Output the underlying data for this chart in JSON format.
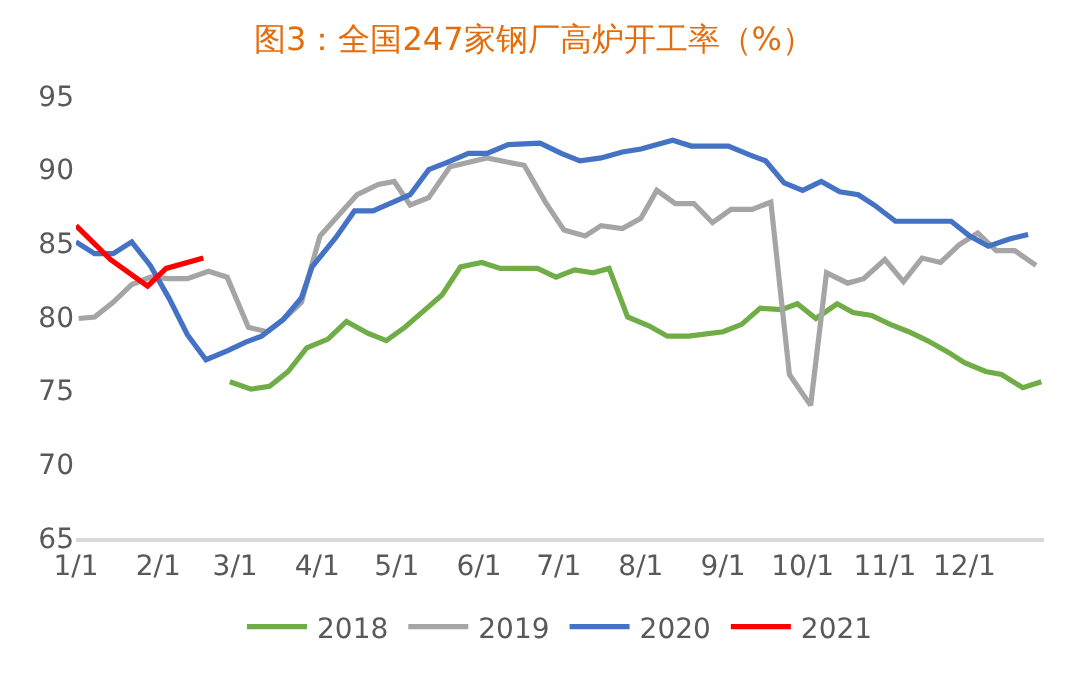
{
  "chart_data": {
    "type": "line",
    "title": "图3：全国247家钢厂高炉开工率（%）",
    "xlim": [
      "--01-01",
      "--12-31"
    ],
    "xticks": [
      {
        "value": "--01-01",
        "label": "1/1"
      },
      {
        "value": "--02-01",
        "label": "2/1"
      },
      {
        "value": "--03-01",
        "label": "3/1"
      },
      {
        "value": "--04-01",
        "label": "4/1"
      },
      {
        "value": "--05-01",
        "label": "5/1"
      },
      {
        "value": "--06-01",
        "label": "6/1"
      },
      {
        "value": "--07-01",
        "label": "7/1"
      },
      {
        "value": "--08-01",
        "label": "8/1"
      },
      {
        "value": "--09-01",
        "label": "9/1"
      },
      {
        "value": "--10-01",
        "label": "10/1"
      },
      {
        "value": "--11-01",
        "label": "11/1"
      },
      {
        "value": "--12-01",
        "label": "12/1"
      }
    ],
    "ylim": [
      65,
      95
    ],
    "yticks": [
      65,
      70,
      75,
      80,
      85,
      90,
      95
    ],
    "grid": false,
    "legend": "bottom",
    "marker": "none",
    "line_style": "solid",
    "series": [
      {
        "name": "2018",
        "color": "#70ad47",
        "x": [
          "--02-28",
          "--03-07",
          "--03-14",
          "--03-21",
          "--03-28",
          "--04-05",
          "--04-12",
          "--04-20",
          "--04-27",
          "--05-04",
          "--05-11",
          "--05-18",
          "--05-25",
          "--06-02",
          "--06-09",
          "--06-23",
          "--06-30",
          "--07-07",
          "--07-14",
          "--07-20",
          "--07-27",
          "--08-04",
          "--08-11",
          "--08-19",
          "--09-01",
          "--09-08",
          "--09-15",
          "--09-23",
          "--09-29",
          "--10-06",
          "--10-14",
          "--10-20",
          "--10-27",
          "--11-03",
          "--11-10",
          "--11-17",
          "--11-25",
          "--12-01",
          "--12-09",
          "--12-15",
          "--12-23",
          "--12-30"
        ],
        "values": [
          75.6,
          75.1,
          75.3,
          76.3,
          77.9,
          78.5,
          79.7,
          78.9,
          78.4,
          79.3,
          80.4,
          81.5,
          83.4,
          83.7,
          83.3,
          83.3,
          82.7,
          83.2,
          83.0,
          83.3,
          80.0,
          79.4,
          78.7,
          78.7,
          79.0,
          79.5,
          80.6,
          80.5,
          80.9,
          79.9,
          80.9,
          80.3,
          80.1,
          79.5,
          79.0,
          78.4,
          77.6,
          76.9,
          76.3,
          76.1,
          75.2,
          75.6
        ]
      },
      {
        "name": "2019",
        "color": "#a5a5a5",
        "x": [
          "--01-02",
          "--01-08",
          "--01-15",
          "--01-22",
          "--01-29",
          "--02-05",
          "--02-12",
          "--02-20",
          "--02-27",
          "--03-06",
          "--03-13",
          "--03-19",
          "--03-26",
          "--04-02",
          "--04-09",
          "--04-16",
          "--04-24",
          "--04-30",
          "--05-06",
          "--05-13",
          "--05-21",
          "--06-04",
          "--06-12",
          "--06-18",
          "--06-26",
          "--07-03",
          "--07-11",
          "--07-17",
          "--07-25",
          "--08-01",
          "--08-07",
          "--08-14",
          "--08-21",
          "--08-28",
          "--09-04",
          "--09-12",
          "--09-19",
          "--09-26",
          "--10-04",
          "--10-10",
          "--10-18",
          "--10-24",
          "--11-01",
          "--11-08",
          "--11-15",
          "--11-22",
          "--11-29",
          "--12-06",
          "--12-13",
          "--12-20",
          "--12-28"
        ],
        "values": [
          79.9,
          80.0,
          81.0,
          82.2,
          82.7,
          82.6,
          82.6,
          83.1,
          82.7,
          79.3,
          79.0,
          79.8,
          81.0,
          85.5,
          86.9,
          88.3,
          89.0,
          89.2,
          87.6,
          88.1,
          90.2,
          90.8,
          90.5,
          90.3,
          87.8,
          85.9,
          85.5,
          86.2,
          86.0,
          86.7,
          88.6,
          87.7,
          87.7,
          86.4,
          87.3,
          87.3,
          87.8,
          76.1,
          74.0,
          83.0,
          82.3,
          82.6,
          83.9,
          82.4,
          84.0,
          83.7,
          84.9,
          85.7,
          84.5,
          84.5,
          83.5
        ]
      },
      {
        "name": "2020",
        "color": "#4472c4",
        "x": [
          "--01-01",
          "--01-08",
          "--01-15",
          "--01-22",
          "--01-29",
          "--02-05",
          "--02-12",
          "--02-19",
          "--02-27",
          "--03-05",
          "--03-11",
          "--03-19",
          "--03-26",
          "--03-30",
          "--04-08",
          "--04-15",
          "--04-22",
          "--05-06",
          "--05-13",
          "--05-20",
          "--05-28",
          "--06-04",
          "--06-12",
          "--06-24",
          "--07-02",
          "--07-09",
          "--07-17",
          "--07-25",
          "--08-01",
          "--08-13",
          "--08-20",
          "--09-03",
          "--09-11",
          "--09-17",
          "--09-24",
          "--10-01",
          "--10-08",
          "--10-15",
          "--10-22",
          "--10-28",
          "--11-05",
          "--11-26",
          "--12-03",
          "--12-10",
          "--12-18",
          "--12-25"
        ],
        "values": [
          85.1,
          84.3,
          84.3,
          85.1,
          83.5,
          81.3,
          78.8,
          77.1,
          77.7,
          78.3,
          78.7,
          79.8,
          81.3,
          83.4,
          85.4,
          87.2,
          87.2,
          88.3,
          90.0,
          90.5,
          91.1,
          91.1,
          91.7,
          91.8,
          91.1,
          90.6,
          90.8,
          91.2,
          91.4,
          92.0,
          91.6,
          91.6,
          91.0,
          90.6,
          89.1,
          88.6,
          89.2,
          88.5,
          88.3,
          87.6,
          86.5,
          86.5,
          85.5,
          84.8,
          85.3,
          85.6
        ]
      },
      {
        "name": "2021",
        "color": "#ff0000",
        "x": [
          "--01-01",
          "--01-14",
          "--01-28",
          "--02-04",
          "--02-18"
        ],
        "values": [
          86.2,
          83.9,
          82.1,
          83.3,
          84.0
        ]
      }
    ]
  }
}
